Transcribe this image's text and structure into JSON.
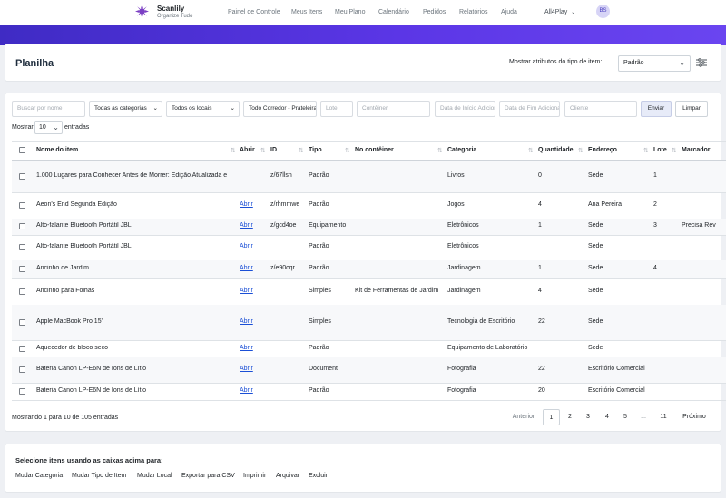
{
  "brand": {
    "name": "Scanlily",
    "tagline": "Organize Tudo"
  },
  "nav": [
    "Painel de Controle",
    "Meus Itens",
    "Meu Plano",
    "Calendário",
    "Pedidos",
    "Relatórios",
    "Ajuda"
  ],
  "account": {
    "name": "All4Play",
    "initials": "BS"
  },
  "header": {
    "title": "Planilha",
    "attr_label": "Mostrar atributos do tipo de item:",
    "attr_value": "Padrão"
  },
  "filters": {
    "search_placeholder": "Buscar por nome",
    "category": "Todas as categorias",
    "location": "Todos os locais",
    "corridor": "Todo Corredor - Prateleira",
    "lot_placeholder": "Lote",
    "container_placeholder": "Contêiner",
    "start_date_placeholder": "Data de Início Adicionad",
    "end_date_placeholder": "Data de Fim Adicionado",
    "client_placeholder": "Cliente",
    "send_label": "Enviar",
    "clear_label": "Limpar"
  },
  "show": {
    "label": "Mostrar",
    "value": "10",
    "suffix": "entradas"
  },
  "columns": [
    "Nome do item",
    "Abrir",
    "ID",
    "Tipo",
    "No contêiner",
    "Categoria",
    "Quantidade",
    "Endereço",
    "Lote",
    "Marcador"
  ],
  "rows": [
    {
      "name": "1.000 Lugares para Conhecer Antes de Morrer: Edição Atualizada e",
      "open": "",
      "id": "z/67llsn",
      "type": "Padrão",
      "container": "",
      "category": "Livros",
      "qty": "0",
      "address": "Sede",
      "lot": "1",
      "marker": ""
    },
    {
      "name": "Aeon's End Segunda Edição",
      "open": "Abrir",
      "id": "z/rhmmwe",
      "type": "Padrão",
      "container": "",
      "category": "Jogos",
      "qty": "4",
      "address": "Ana Pereira",
      "lot": "2",
      "marker": ""
    },
    {
      "name": "Alto-falante Bluetooth Portátil JBL",
      "open": "Abrir",
      "id": "z/gcd4oe",
      "type": "Equipamento",
      "container": "",
      "category": "Eletrônicos",
      "qty": "1",
      "address": "Sede",
      "lot": "3",
      "marker": "Precisa Rev"
    },
    {
      "name": "Alto-falante Bluetooth Portátil JBL",
      "open": "Abrir",
      "id": "",
      "type": "Padrão",
      "container": "",
      "category": "Eletrônicos",
      "qty": "",
      "address": "Sede",
      "lot": "",
      "marker": ""
    },
    {
      "name": "Ancinho de Jardim",
      "open": "Abrir",
      "id": "z/e90cqr",
      "type": "Padrão",
      "container": "",
      "category": "Jardinagem",
      "qty": "1",
      "address": "Sede",
      "lot": "4",
      "marker": ""
    },
    {
      "name": "Ancinho para Folhas",
      "open": "Abrir",
      "id": "",
      "type": "Simples",
      "container": "Kit de Ferramentas de Jardim",
      "category": "Jardinagem",
      "qty": "4",
      "address": "Sede",
      "lot": "",
      "marker": ""
    },
    {
      "name": "Apple MacBook Pro 15\"",
      "open": "Abrir",
      "id": "",
      "type": "Simples",
      "container": "",
      "category": "Tecnologia de Escritório",
      "qty": "22",
      "address": "Sede",
      "lot": "",
      "marker": ""
    },
    {
      "name": "Aquecedor de bloco seco",
      "open": "Abrir",
      "id": "",
      "type": "Padrão",
      "container": "",
      "category": "Equipamento de Laboratório",
      "qty": "",
      "address": "Sede",
      "lot": "",
      "marker": ""
    },
    {
      "name": "Bateria Canon LP-E6N de Íons de Lítio",
      "open": "Abrir",
      "id": "",
      "type": "Document",
      "container": "",
      "category": "Fotografia",
      "qty": "22",
      "address": "Escritório Comercial",
      "lot": "",
      "marker": ""
    },
    {
      "name": "Bateria Canon LP-E6N de Íons de Lítio",
      "open": "Abrir",
      "id": "",
      "type": "Padrão",
      "container": "",
      "category": "Fotografia",
      "qty": "20",
      "address": "Escritório Comercial",
      "lot": "",
      "marker": ""
    }
  ],
  "pagination": {
    "info": "Mostrando 1 para 10 de 105 entradas",
    "prev": "Anterior",
    "pages": [
      "1",
      "2",
      "3",
      "4",
      "5",
      "...",
      "11"
    ],
    "next": "Próximo"
  },
  "bulk": {
    "title": "Selecione itens usando as caixas acima para:",
    "actions": [
      "Mudar Categoria",
      "Mudar Tipo de Item",
      "Mudar Local",
      "Exportar para CSV",
      "Imprimir",
      "Arquivar",
      "Excluir"
    ]
  }
}
